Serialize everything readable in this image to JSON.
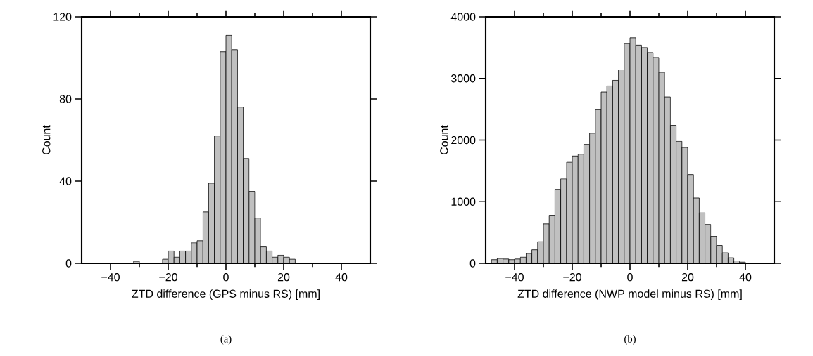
{
  "chart_data": [
    {
      "type": "histogram",
      "xlabel": "ZTD difference (GPS minus RS) [mm]",
      "ylabel": "Count",
      "color": "#c0c0c0",
      "bins": [
        -32,
        -30,
        -28,
        -26,
        -24,
        -22,
        -20,
        -18,
        -16,
        -14,
        -12,
        -10,
        -8,
        -6,
        -4,
        -2,
        0,
        2,
        4,
        6,
        8,
        10,
        12,
        14,
        16,
        18,
        20,
        22,
        24
      ],
      "values": [
        1,
        null,
        null,
        null,
        null,
        2,
        6,
        3,
        6,
        6,
        10,
        11,
        25,
        39,
        62,
        103,
        111,
        104,
        76,
        51,
        35,
        22,
        8,
        6,
        3,
        4,
        3,
        2
      ],
      "xlim": [
        -50,
        50
      ],
      "ylim": [
        0,
        120
      ],
      "xticks": [
        {
          "value": -40,
          "label": "−40"
        },
        {
          "value": -30,
          "label": null
        },
        {
          "value": -20,
          "label": "−20"
        },
        {
          "value": -10,
          "label": null
        },
        0,
        {
          "value": 10,
          "label": null
        },
        20,
        {
          "value": 30,
          "label": null
        },
        40
      ],
      "yticks": [
        0,
        40,
        80,
        120
      ],
      "grid": false,
      "annotations": [
        "(a)"
      ]
    },
    {
      "type": "histogram",
      "xlabel": "ZTD difference (NWP model minus RS) [mm]",
      "ylabel": "Count",
      "color": "#c0c0c0",
      "bins": [
        -48,
        -46,
        -44,
        -42,
        -40,
        -38,
        -36,
        -34,
        -32,
        -30,
        -28,
        -26,
        -24,
        -22,
        -20,
        -18,
        -16,
        -14,
        -12,
        -10,
        -8,
        -6,
        -4,
        -2,
        0,
        2,
        4,
        6,
        8,
        10,
        12,
        14,
        16,
        18,
        20,
        22,
        24,
        26,
        28,
        30,
        32,
        34,
        36,
        38,
        40
      ],
      "values": [
        60,
        80,
        70,
        60,
        70,
        100,
        160,
        220,
        350,
        640,
        780,
        1200,
        1370,
        1640,
        1740,
        1770,
        1930,
        2110,
        2500,
        2780,
        2880,
        2970,
        3140,
        3570,
        3660,
        3540,
        3500,
        3420,
        3340,
        3100,
        2700,
        2240,
        1980,
        1880,
        1440,
        1060,
        820,
        630,
        440,
        290,
        170,
        90,
        40,
        20
      ],
      "xlim": [
        -50,
        50
      ],
      "ylim": [
        0,
        4000
      ],
      "xticks": [
        {
          "value": -40,
          "label": "−40"
        },
        {
          "value": -30,
          "label": null
        },
        {
          "value": -20,
          "label": "−20"
        },
        {
          "value": -10,
          "label": null
        },
        0,
        {
          "value": 10,
          "label": null
        },
        20,
        {
          "value": 30,
          "label": null
        },
        40
      ],
      "yticks": [
        0,
        1000,
        2000,
        3000,
        4000
      ],
      "grid": false,
      "annotations": [
        "(b)"
      ]
    }
  ]
}
